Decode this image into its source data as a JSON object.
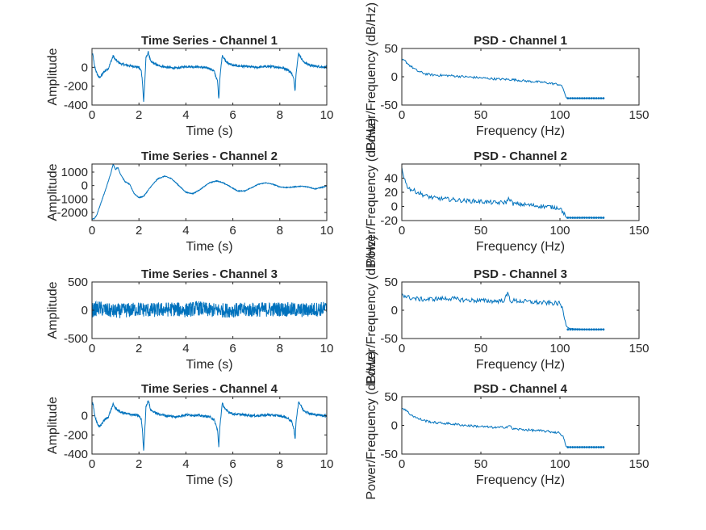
{
  "figure": {
    "background": "#ffffff",
    "line_color": "#0072bd",
    "axes_color": "#262626"
  },
  "chart_data": [
    {
      "type": "line",
      "title": "Time Series - Channel 1",
      "xlabel": "Time (s)",
      "ylabel": "Amplitude",
      "xlim": [
        0,
        10
      ],
      "ylim": [
        -400,
        200
      ],
      "xticks": [
        0,
        2,
        4,
        6,
        8,
        10
      ],
      "yticks": [
        -400,
        -200,
        0
      ],
      "series": [
        {
          "style": "noisy",
          "x": [
            0,
            0.05,
            0.1,
            0.2,
            0.3,
            0.4,
            0.5,
            0.7,
            0.9,
            1.0,
            1.2,
            1.5,
            1.8,
            2.0,
            2.1,
            2.15,
            2.2,
            2.25,
            2.3,
            2.4,
            2.5,
            2.8,
            3.2,
            3.6,
            4.0,
            4.5,
            5.0,
            5.2,
            5.35,
            5.4,
            5.45,
            5.55,
            5.7,
            6.0,
            6.5,
            7.0,
            7.5,
            8.0,
            8.3,
            8.5,
            8.6,
            8.65,
            8.7,
            8.8,
            9.0,
            9.3,
            9.6,
            10.0
          ],
          "y": [
            150,
            120,
            20,
            -60,
            -110,
            -90,
            -50,
            -10,
            120,
            80,
            40,
            20,
            10,
            0,
            -40,
            -150,
            -370,
            -150,
            100,
            160,
            60,
            20,
            0,
            -10,
            10,
            5,
            -10,
            -40,
            -150,
            -340,
            -100,
            130,
            60,
            20,
            10,
            0,
            10,
            0,
            -20,
            -60,
            -130,
            -250,
            -40,
            150,
            60,
            20,
            10,
            0
          ],
          "noise": 12
        }
      ]
    },
    {
      "type": "line",
      "title": "PSD - Channel 1",
      "xlabel": "Frequency (Hz)",
      "ylabel": "Power/Frequency (dB/Hz)",
      "xlim": [
        0,
        150
      ],
      "ylim": [
        -50,
        50
      ],
      "xticks": [
        0,
        50,
        100,
        150
      ],
      "yticks": [
        -50,
        0,
        50
      ],
      "series": [
        {
          "style": "psd",
          "x": [
            0,
            2,
            5,
            10,
            15,
            20,
            30,
            40,
            50,
            60,
            70,
            80,
            90,
            100,
            102,
            104,
            106,
            110,
            115,
            120,
            125,
            128
          ],
          "y": [
            30,
            28,
            20,
            10,
            5,
            3,
            2,
            0,
            -2,
            -4,
            -5,
            -8,
            -10,
            -14,
            -20,
            -38,
            -38,
            -38,
            -38,
            -38,
            -38,
            -38
          ],
          "noise": 2
        }
      ]
    },
    {
      "type": "line",
      "title": "Time Series - Channel 2",
      "xlabel": "Time (s)",
      "ylabel": "Amplitude",
      "xlim": [
        0,
        10
      ],
      "ylim": [
        -2600,
        1600
      ],
      "xticks": [
        0,
        2,
        4,
        6,
        8,
        10
      ],
      "yticks": [
        -2000,
        -1000,
        0,
        1000
      ],
      "series": [
        {
          "style": "smooth",
          "x": [
            0,
            0.1,
            0.2,
            0.4,
            0.6,
            0.8,
            0.9,
            1.0,
            1.1,
            1.2,
            1.4,
            1.6,
            1.8,
            2.0,
            2.2,
            2.5,
            2.8,
            3.1,
            3.4,
            3.7,
            4.0,
            4.3,
            4.6,
            5.0,
            5.3,
            5.6,
            5.9,
            6.2,
            6.5,
            6.8,
            7.1,
            7.4,
            7.7,
            8.0,
            8.3,
            8.6,
            8.9,
            9.2,
            9.5,
            10.0
          ],
          "y": [
            -2500,
            -2450,
            -2200,
            -1200,
            -200,
            900,
            1600,
            1200,
            1350,
            900,
            300,
            100,
            -600,
            -900,
            -800,
            -100,
            500,
            700,
            500,
            0,
            -500,
            -600,
            -300,
            200,
            350,
            200,
            -100,
            -400,
            -400,
            -150,
            100,
            200,
            100,
            -100,
            -150,
            -100,
            -50,
            -100,
            -250,
            -50
          ],
          "noise": 30
        }
      ]
    },
    {
      "type": "line",
      "title": "PSD - Channel 2",
      "xlabel": "Frequency (Hz)",
      "ylabel": "Power/Frequency (dB/Hz)",
      "xlim": [
        0,
        150
      ],
      "ylim": [
        -20,
        60
      ],
      "xticks": [
        0,
        50,
        100,
        150
      ],
      "yticks": [
        -20,
        0,
        20,
        40
      ],
      "series": [
        {
          "style": "psd",
          "x": [
            0,
            1,
            3,
            5,
            10,
            15,
            20,
            30,
            40,
            50,
            60,
            66,
            68,
            70,
            80,
            90,
            100,
            102,
            104,
            106,
            110,
            115,
            120,
            125,
            128
          ],
          "y": [
            55,
            45,
            30,
            25,
            20,
            15,
            12,
            10,
            8,
            7,
            5,
            6,
            12,
            4,
            2,
            0,
            -2,
            -8,
            -16,
            -16,
            -16,
            -16,
            -16,
            -16,
            -16
          ],
          "noise": 3
        }
      ]
    },
    {
      "type": "line",
      "title": "Time Series - Channel 3",
      "xlabel": "Time (s)",
      "ylabel": "Amplitude",
      "xlim": [
        0,
        10
      ],
      "ylim": [
        -500,
        500
      ],
      "xticks": [
        0,
        2,
        4,
        6,
        8,
        10
      ],
      "yticks": [
        -500,
        0,
        500
      ],
      "series": [
        {
          "style": "random",
          "x": [
            0,
            0.3,
            0.6,
            1.0,
            1.5,
            2.0,
            2.5,
            3.0,
            3.5,
            4.0,
            4.5,
            5.0,
            6.0,
            7.0,
            8.0,
            9.0,
            10.0
          ],
          "y": [
            0,
            40,
            0,
            -20,
            0,
            20,
            0,
            10,
            20,
            0,
            40,
            0,
            0,
            10,
            20,
            0,
            30
          ],
          "noise": 130
        }
      ]
    },
    {
      "type": "line",
      "title": "PSD - Channel 3",
      "xlabel": "Frequency (Hz)",
      "ylabel": "Power/Frequency (dB/Hz)",
      "xlim": [
        0,
        150
      ],
      "ylim": [
        -50,
        50
      ],
      "xticks": [
        0,
        50,
        100,
        150
      ],
      "yticks": [
        -50,
        0,
        50
      ],
      "series": [
        {
          "style": "psd",
          "x": [
            0,
            2,
            5,
            10,
            15,
            20,
            30,
            40,
            50,
            60,
            65,
            67,
            69,
            70,
            80,
            90,
            100,
            102,
            104,
            106,
            110,
            115,
            120,
            125,
            128
          ],
          "y": [
            30,
            25,
            22,
            20,
            19,
            20,
            21,
            18,
            17,
            16,
            18,
            30,
            15,
            17,
            15,
            13,
            12,
            0,
            -28,
            -32,
            -33,
            -34,
            -34,
            -34,
            -34
          ],
          "noise": 4
        }
      ]
    },
    {
      "type": "line",
      "title": "Time Series - Channel 4",
      "xlabel": "Time (s)",
      "ylabel": "Amplitude",
      "xlim": [
        0,
        10
      ],
      "ylim": [
        -400,
        200
      ],
      "xticks": [
        0,
        2,
        4,
        6,
        8,
        10
      ],
      "yticks": [
        -400,
        -200,
        0
      ],
      "series": [
        {
          "style": "noisy",
          "x": [
            0,
            0.05,
            0.1,
            0.2,
            0.3,
            0.4,
            0.5,
            0.7,
            0.9,
            1.0,
            1.2,
            1.5,
            1.8,
            2.0,
            2.1,
            2.15,
            2.2,
            2.25,
            2.3,
            2.4,
            2.5,
            2.8,
            3.2,
            3.6,
            4.0,
            4.5,
            5.0,
            5.2,
            5.35,
            5.4,
            5.45,
            5.55,
            5.7,
            6.0,
            6.5,
            7.0,
            7.5,
            8.0,
            8.3,
            8.5,
            8.6,
            8.65,
            8.7,
            8.8,
            9.0,
            9.3,
            9.6,
            10.0
          ],
          "y": [
            150,
            120,
            20,
            -60,
            -120,
            -90,
            -50,
            -10,
            120,
            80,
            40,
            20,
            10,
            0,
            -40,
            -150,
            -370,
            -150,
            100,
            160,
            60,
            20,
            0,
            -10,
            10,
            5,
            -10,
            -40,
            -150,
            -330,
            -100,
            130,
            60,
            20,
            10,
            0,
            10,
            0,
            -20,
            -60,
            -130,
            -250,
            -40,
            150,
            60,
            20,
            10,
            0
          ],
          "noise": 12
        }
      ]
    },
    {
      "type": "line",
      "title": "PSD - Channel 4",
      "xlabel": "Frequency (Hz)",
      "ylabel": "Power/Frequency (dB/Hz)",
      "xlim": [
        0,
        150
      ],
      "ylim": [
        -50,
        50
      ],
      "xticks": [
        0,
        50,
        100,
        150
      ],
      "yticks": [
        -50,
        0,
        50
      ],
      "series": [
        {
          "style": "psd",
          "x": [
            0,
            2,
            5,
            10,
            15,
            20,
            30,
            40,
            50,
            60,
            66,
            68,
            70,
            80,
            90,
            100,
            102,
            104,
            106,
            110,
            115,
            120,
            125,
            128
          ],
          "y": [
            30,
            28,
            20,
            12,
            8,
            5,
            3,
            0,
            -2,
            -4,
            -3,
            0,
            -6,
            -8,
            -10,
            -13,
            -20,
            -38,
            -38,
            -38,
            -38,
            -38,
            -38,
            -38
          ],
          "noise": 2
        }
      ]
    }
  ]
}
